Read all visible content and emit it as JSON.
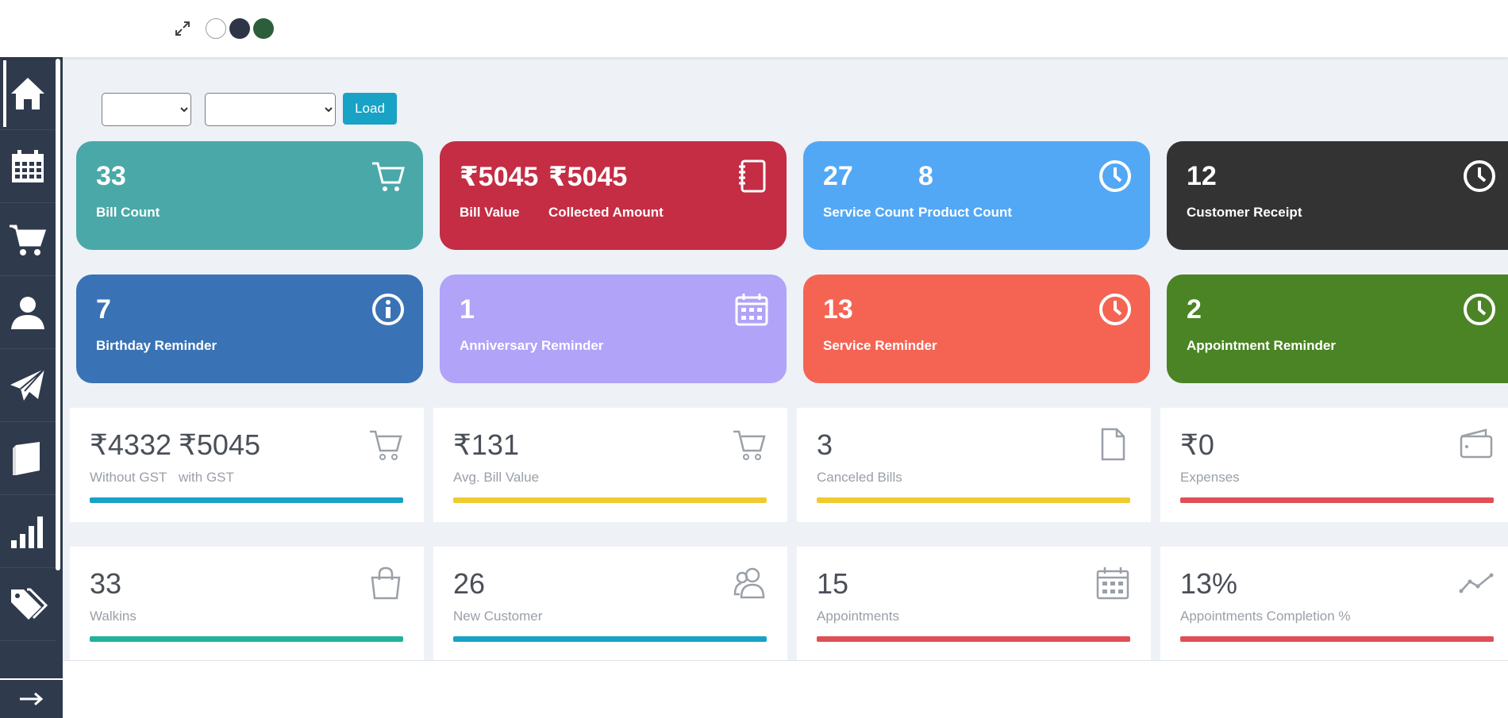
{
  "filters": {
    "select_1_value": "",
    "select_2_value": "",
    "load_label": "Load"
  },
  "colors": {
    "sidebar": "#2f3a4d",
    "load_button": "#17a2c6"
  },
  "theme_dots": [
    "white",
    "dark",
    "green"
  ],
  "sidebar": {
    "items": [
      {
        "icon": "home-icon"
      },
      {
        "icon": "calendar-icon"
      },
      {
        "icon": "cart-icon"
      },
      {
        "icon": "user-icon"
      },
      {
        "icon": "send-icon"
      },
      {
        "icon": "book-icon"
      },
      {
        "icon": "bar-chart-icon"
      },
      {
        "icon": "tags-icon"
      }
    ],
    "collapse_icon": "arrow-right-icon"
  },
  "cards_row1": [
    {
      "value": "33",
      "label": "Bill Count",
      "color": "#4aa8a8",
      "icon": "cart-icon"
    },
    {
      "value": "₹5045",
      "label": "Bill Value",
      "value2": "₹5045",
      "label2": "Collected Amount",
      "color": "#c42d44",
      "icon": "notebook-icon"
    },
    {
      "value": "27",
      "label": "Service Count",
      "value2": "8",
      "label2": "Product Count",
      "color": "#53a8f5",
      "icon": "clock-icon"
    },
    {
      "value": "12",
      "label": "Customer Receipt",
      "color": "#333333",
      "icon": "clock-icon"
    }
  ],
  "cards_row2": [
    {
      "value": "7",
      "label": "Birthday Reminder",
      "color": "#3a73b5",
      "icon": "info-icon"
    },
    {
      "value": "1",
      "label": "Anniversary Reminder",
      "color": "#b0a3f8",
      "icon": "calendar-icon"
    },
    {
      "value": "13",
      "label": "Service Reminder",
      "color": "#f56453",
      "icon": "clock-icon"
    },
    {
      "value": "2",
      "label": "Appointment Reminder",
      "color": "#4a8424",
      "icon": "clock-icon"
    }
  ],
  "tiles_row1": [
    {
      "value": "₹4332",
      "label": "Without GST",
      "value2": "₹5045",
      "label2": "with GST",
      "bar_color": "#17a2c6",
      "icon": "cart-icon"
    },
    {
      "value": "₹131",
      "label": "Avg. Bill Value",
      "bar_color": "#f0cb30",
      "icon": "cart-icon"
    },
    {
      "value": "3",
      "label": "Canceled Bills",
      "bar_color": "#f0cb30",
      "icon": "file-icon"
    },
    {
      "value": "₹0",
      "label": "Expenses",
      "bar_color": "#e04f55",
      "icon": "wallet-icon"
    }
  ],
  "tiles_row2": [
    {
      "value": "33",
      "label": "Walkins",
      "bar_color": "#21b39a",
      "icon": "shopping-bag-icon"
    },
    {
      "value": "26",
      "label": "New Customer",
      "bar_color": "#17a2c6",
      "icon": "users-icon"
    },
    {
      "value": "15",
      "label": "Appointments",
      "bar_color": "#e04f55",
      "icon": "calendar-icon"
    },
    {
      "value": "13%",
      "label": "Appointments Completion %",
      "bar_color": "#e04f55",
      "icon": "trend-icon"
    }
  ]
}
